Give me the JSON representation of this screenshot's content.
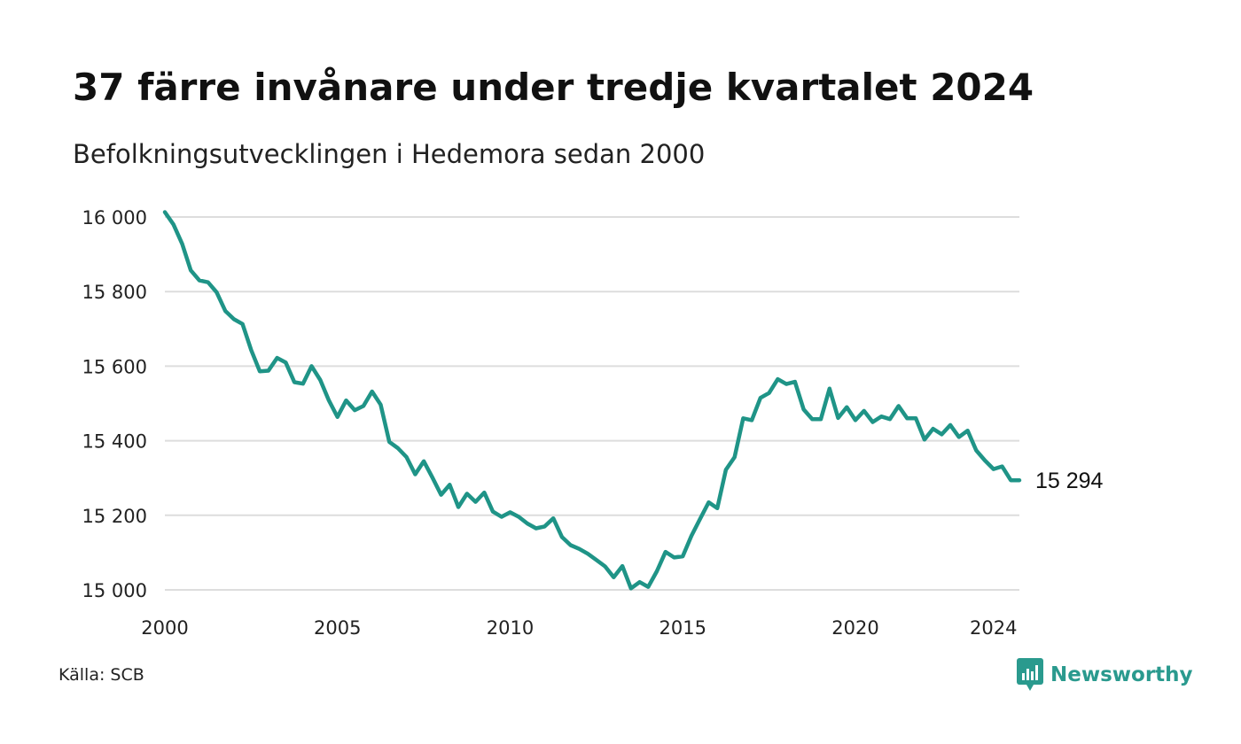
{
  "title": "37 färre invånare under tredje kvartalet 2024",
  "subtitle": "Befolkningsutvecklingen i Hedemora sedan 2000",
  "source": "Källa: SCB",
  "brand": {
    "name": "Newsworthy",
    "icon": "newsworthy-logo-icon",
    "color": "#2a9a8e"
  },
  "chart_data": {
    "type": "line",
    "title": "37 färre invånare under tredje kvartalet 2024",
    "xlabel": "",
    "ylabel": "",
    "ylim": [
      15000,
      16000
    ],
    "xlim": [
      2000.0,
      2024.75
    ],
    "yticks": [
      15000,
      15200,
      15400,
      15600,
      15800,
      16000
    ],
    "ytick_labels": [
      "15 000",
      "15 200",
      "15 400",
      "15 600",
      "15 800",
      "16 000"
    ],
    "xticks": [
      2000,
      2005,
      2010,
      2015,
      2020,
      2024
    ],
    "xtick_labels": [
      "2000",
      "2005",
      "2010",
      "2015",
      "2020",
      "2024"
    ],
    "grid": true,
    "line_color": "#1f9487",
    "end_label": "15 294",
    "series": [
      {
        "x": [
          2000.0,
          2000.25,
          2000.5,
          2000.75,
          2001.0,
          2001.25,
          2001.5,
          2001.75,
          2002.0,
          2002.25,
          2002.5,
          2002.75,
          2003.0,
          2003.25,
          2003.5,
          2003.75,
          2004.0,
          2004.25,
          2004.5,
          2004.75,
          2005.0,
          2005.25,
          2005.5,
          2005.75,
          2006.0,
          2006.25,
          2006.5,
          2006.75,
          2007.0,
          2007.25,
          2007.5,
          2007.75,
          2008.0,
          2008.25,
          2008.5,
          2008.75,
          2009.0,
          2009.25,
          2009.5,
          2009.75,
          2010.0,
          2010.25,
          2010.5,
          2010.75,
          2011.0,
          2011.25,
          2011.5,
          2011.75,
          2012.0,
          2012.25,
          2012.5,
          2012.75,
          2013.0,
          2013.25,
          2013.5,
          2013.75,
          2014.0,
          2014.25,
          2014.5,
          2014.75,
          2015.0,
          2015.25,
          2015.5,
          2015.75,
          2016.0,
          2016.25,
          2016.5,
          2016.75,
          2017.0,
          2017.25,
          2017.5,
          2017.75,
          2018.0,
          2018.25,
          2018.5,
          2018.75,
          2019.0,
          2019.25,
          2019.5,
          2019.75,
          2020.0,
          2020.25,
          2020.5,
          2020.75,
          2021.0,
          2021.25,
          2021.5,
          2021.75,
          2022.0,
          2022.25,
          2022.5,
          2022.75,
          2023.0,
          2023.25,
          2023.5,
          2023.75,
          2024.0,
          2024.25,
          2024.5,
          2024.75
        ],
        "y": [
          16013,
          15980,
          15928,
          15857,
          15830,
          15825,
          15798,
          15748,
          15726,
          15713,
          15643,
          15586,
          15588,
          15622,
          15610,
          15557,
          15553,
          15600,
          15563,
          15508,
          15464,
          15508,
          15482,
          15493,
          15532,
          15497,
          15397,
          15380,
          15356,
          15310,
          15345,
          15301,
          15255,
          15282,
          15222,
          15258,
          15236,
          15261,
          15210,
          15196,
          15208,
          15196,
          15178,
          15165,
          15170,
          15192,
          15142,
          15120,
          15110,
          15097,
          15080,
          15063,
          15034,
          15064,
          15004,
          15021,
          15008,
          15050,
          15102,
          15087,
          15090,
          15145,
          15190,
          15235,
          15219,
          15322,
          15356,
          15460,
          15455,
          15515,
          15528,
          15565,
          15552,
          15558,
          15484,
          15458,
          15458,
          15540,
          15461,
          15490,
          15455,
          15480,
          15450,
          15465,
          15458,
          15493,
          15460,
          15460,
          15403,
          15432,
          15417,
          15442,
          15410,
          15427,
          15374,
          15347,
          15324,
          15331,
          15294,
          15294
        ]
      }
    ]
  }
}
